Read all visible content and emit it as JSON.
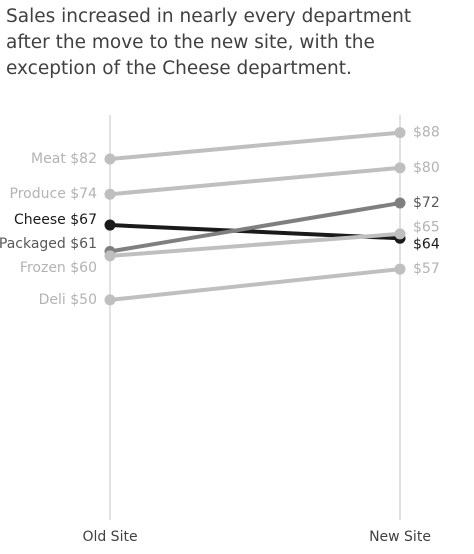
{
  "chart_data": {
    "type": "slope",
    "title": [
      "Sales increased in nearly every department",
      "after the move to the new site, with the",
      "exception of the Cheese department."
    ],
    "categories": [
      "Old Site",
      "New Site"
    ],
    "ylim": [
      0,
      92
    ],
    "series": [
      {
        "name": "Meat",
        "color": "#bfbfbf",
        "values": [
          82,
          88
        ],
        "value_labels": [
          "$82",
          "$88"
        ]
      },
      {
        "name": "Produce",
        "color": "#bfbfbf",
        "values": [
          74,
          80
        ],
        "value_labels": [
          "$74",
          "$80"
        ]
      },
      {
        "name": "Cheese",
        "color": "#1a1a1a",
        "values": [
          67,
          64
        ],
        "value_labels": [
          "$67",
          "$64"
        ]
      },
      {
        "name": "Packaged",
        "color": "#7f7f7f",
        "values": [
          61,
          72
        ],
        "value_labels": [
          "$61",
          "$72"
        ]
      },
      {
        "name": "Frozen",
        "color": "#bfbfbf",
        "values": [
          60,
          65
        ],
        "value_labels": [
          "$60",
          "$65"
        ]
      },
      {
        "name": "Deli",
        "color": "#bfbfbf",
        "values": [
          50,
          57
        ],
        "value_labels": [
          "$50",
          "$57"
        ]
      }
    ]
  }
}
